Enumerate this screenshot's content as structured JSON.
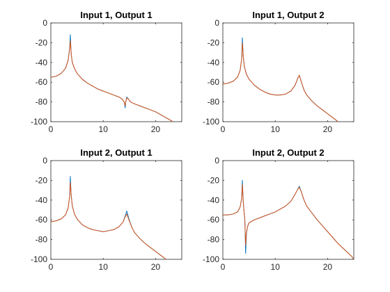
{
  "chart_data": [
    {
      "type": "line",
      "title": "Input 1, Output 1",
      "xlim": [
        0,
        25
      ],
      "ylim": [
        -100,
        0
      ],
      "xticks": [
        0,
        10,
        20
      ],
      "yticks": [
        0,
        -20,
        -40,
        -60,
        -80,
        -100
      ],
      "grid": false,
      "colors": [
        "#0072BD",
        "#D95319"
      ],
      "series": [
        {
          "x": [
            0,
            1,
            2,
            2.8,
            3.3,
            3.6,
            3.72,
            3.8,
            3.9,
            4.1,
            4.5,
            5,
            6,
            7,
            8,
            9,
            10,
            11,
            12,
            13,
            13.6,
            14,
            14.2,
            14.3,
            14.5,
            14.8,
            15.2,
            16,
            17,
            18,
            19,
            20,
            21,
            22,
            23,
            23.5
          ],
          "y": [
            -55,
            -54,
            -51,
            -46,
            -38,
            -25,
            -12,
            -22,
            -32,
            -40,
            -46,
            -51,
            -57,
            -61,
            -64,
            -67,
            -69,
            -71,
            -73,
            -75,
            -77,
            -80,
            -86,
            -80,
            -75,
            -77,
            -80,
            -82,
            -84,
            -86,
            -88,
            -90,
            -93,
            -96,
            -99,
            -101
          ]
        },
        {
          "x": [
            0,
            1,
            2,
            2.8,
            3.3,
            3.6,
            3.72,
            3.8,
            3.9,
            4.1,
            4.5,
            5,
            6,
            7,
            8,
            9,
            10,
            11,
            12,
            13,
            13.6,
            14,
            14.2,
            14.3,
            14.5,
            14.8,
            15.2,
            16,
            17,
            18,
            19,
            20,
            21,
            22,
            23,
            23.5
          ],
          "y": [
            -55,
            -54,
            -51,
            -46,
            -38,
            -26,
            -18,
            -24,
            -32,
            -40,
            -46,
            -51,
            -57,
            -61,
            -64,
            -67,
            -69,
            -71,
            -73,
            -75,
            -77,
            -80,
            -84,
            -80,
            -76,
            -77,
            -80,
            -82,
            -84,
            -86,
            -88,
            -90,
            -93,
            -96,
            -99,
            -101
          ]
        }
      ]
    },
    {
      "type": "line",
      "title": "Input 1, Output 2",
      "xlim": [
        0,
        25
      ],
      "ylim": [
        -100,
        0
      ],
      "xticks": [
        0,
        10,
        20
      ],
      "yticks": [
        0,
        -20,
        -40,
        -60,
        -80,
        -100
      ],
      "grid": false,
      "colors": [
        "#0072BD",
        "#D95319"
      ],
      "series": [
        {
          "x": [
            0,
            1,
            2,
            2.8,
            3.3,
            3.6,
            3.72,
            3.8,
            3.9,
            4.1,
            4.5,
            5,
            6,
            7,
            8,
            9,
            10,
            11,
            12,
            13,
            13.8,
            14.3,
            14.6,
            15,
            15.5,
            16,
            17,
            18,
            19,
            20,
            21,
            22
          ],
          "y": [
            -62,
            -61,
            -59,
            -55,
            -48,
            -36,
            -15,
            -24,
            -34,
            -44,
            -52,
            -57,
            -63,
            -67,
            -70,
            -72,
            -73,
            -73,
            -72,
            -69,
            -63,
            -56,
            -53,
            -60,
            -68,
            -73,
            -79,
            -84,
            -88,
            -92,
            -96,
            -100
          ]
        },
        {
          "x": [
            0,
            1,
            2,
            2.8,
            3.3,
            3.6,
            3.72,
            3.8,
            3.9,
            4.1,
            4.5,
            5,
            6,
            7,
            8,
            9,
            10,
            11,
            12,
            13,
            13.8,
            14.3,
            14.6,
            15,
            15.5,
            16,
            17,
            18,
            19,
            20,
            21,
            22
          ],
          "y": [
            -62,
            -61,
            -59,
            -55,
            -48,
            -36,
            -20,
            -26,
            -34,
            -44,
            -52,
            -57,
            -63,
            -67,
            -70,
            -72,
            -73,
            -73,
            -72,
            -69,
            -63,
            -56,
            -53,
            -60,
            -68,
            -73,
            -79,
            -84,
            -88,
            -92,
            -96,
            -100
          ]
        }
      ]
    },
    {
      "type": "line",
      "title": "Input 2, Output 1",
      "xlim": [
        0,
        25
      ],
      "ylim": [
        -100,
        0
      ],
      "xticks": [
        0,
        10,
        20
      ],
      "yticks": [
        0,
        -20,
        -40,
        -60,
        -80,
        -100
      ],
      "grid": false,
      "colors": [
        "#0072BD",
        "#D95319"
      ],
      "series": [
        {
          "x": [
            0,
            1,
            2,
            2.8,
            3.3,
            3.6,
            3.72,
            3.8,
            3.9,
            4.1,
            4.5,
            5,
            6,
            7,
            8,
            9,
            10,
            11,
            12,
            13,
            13.8,
            14.2,
            14.5,
            14.9,
            15.5,
            16,
            17,
            18,
            19,
            20,
            21,
            22
          ],
          "y": [
            -62,
            -61,
            -59,
            -55,
            -48,
            -36,
            -16,
            -26,
            -36,
            -46,
            -54,
            -59,
            -65,
            -68,
            -70,
            -71,
            -72,
            -71,
            -70,
            -67,
            -62,
            -56,
            -51,
            -59,
            -68,
            -73,
            -79,
            -84,
            -88,
            -92,
            -96,
            -100
          ]
        },
        {
          "x": [
            0,
            1,
            2,
            2.8,
            3.3,
            3.6,
            3.72,
            3.8,
            3.9,
            4.1,
            4.5,
            5,
            6,
            7,
            8,
            9,
            10,
            11,
            12,
            13,
            13.8,
            14.2,
            14.5,
            14.9,
            15.5,
            16,
            17,
            18,
            19,
            20,
            21,
            22
          ],
          "y": [
            -62,
            -61,
            -59,
            -55,
            -48,
            -36,
            -22,
            -28,
            -36,
            -46,
            -54,
            -59,
            -65,
            -68,
            -70,
            -71,
            -72,
            -71,
            -70,
            -67,
            -62,
            -57,
            -54,
            -60,
            -68,
            -73,
            -79,
            -84,
            -88,
            -92,
            -96,
            -100
          ]
        }
      ]
    },
    {
      "type": "line",
      "title": "Input 2, Output 2",
      "xlim": [
        0,
        25
      ],
      "ylim": [
        -100,
        0
      ],
      "xticks": [
        0,
        10,
        20
      ],
      "yticks": [
        0,
        -20,
        -40,
        -60,
        -80,
        -100
      ],
      "grid": false,
      "colors": [
        "#0072BD",
        "#D95319"
      ],
      "series": [
        {
          "x": [
            0,
            1,
            2,
            2.8,
            3.3,
            3.6,
            3.72,
            3.8,
            3.9,
            4.05,
            4.2,
            4.35,
            4.5,
            4.7,
            5,
            6,
            7,
            8,
            9,
            10,
            11,
            12,
            13,
            13.8,
            14.3,
            14.6,
            15,
            15.5,
            16,
            17,
            18,
            19,
            20,
            21,
            22,
            23,
            24,
            24.6,
            25
          ],
          "y": [
            -55,
            -55,
            -54,
            -52,
            -47,
            -38,
            -20,
            -30,
            -42,
            -52,
            -60,
            -94,
            -74,
            -67,
            -63,
            -60,
            -58,
            -56,
            -54,
            -52,
            -49,
            -46,
            -41,
            -34,
            -29,
            -26,
            -32,
            -40,
            -46,
            -53,
            -60,
            -66,
            -72,
            -78,
            -84,
            -89,
            -94,
            -97,
            -100
          ]
        },
        {
          "x": [
            0,
            1,
            2,
            2.8,
            3.3,
            3.6,
            3.72,
            3.8,
            3.9,
            4.05,
            4.2,
            4.35,
            4.5,
            4.7,
            5,
            6,
            7,
            8,
            9,
            10,
            11,
            12,
            13,
            13.8,
            14.3,
            14.6,
            15,
            15.5,
            16,
            17,
            18,
            19,
            20,
            21,
            22,
            23,
            24,
            24.6,
            25
          ],
          "y": [
            -55,
            -55,
            -54,
            -52,
            -47,
            -38,
            -24,
            -32,
            -42,
            -52,
            -60,
            -86,
            -73,
            -67,
            -63,
            -60,
            -58,
            -56,
            -54,
            -52,
            -49,
            -46,
            -41,
            -34,
            -29,
            -27,
            -32,
            -40,
            -46,
            -53,
            -60,
            -66,
            -72,
            -78,
            -84,
            -89,
            -94,
            -97,
            -100
          ]
        }
      ]
    }
  ]
}
